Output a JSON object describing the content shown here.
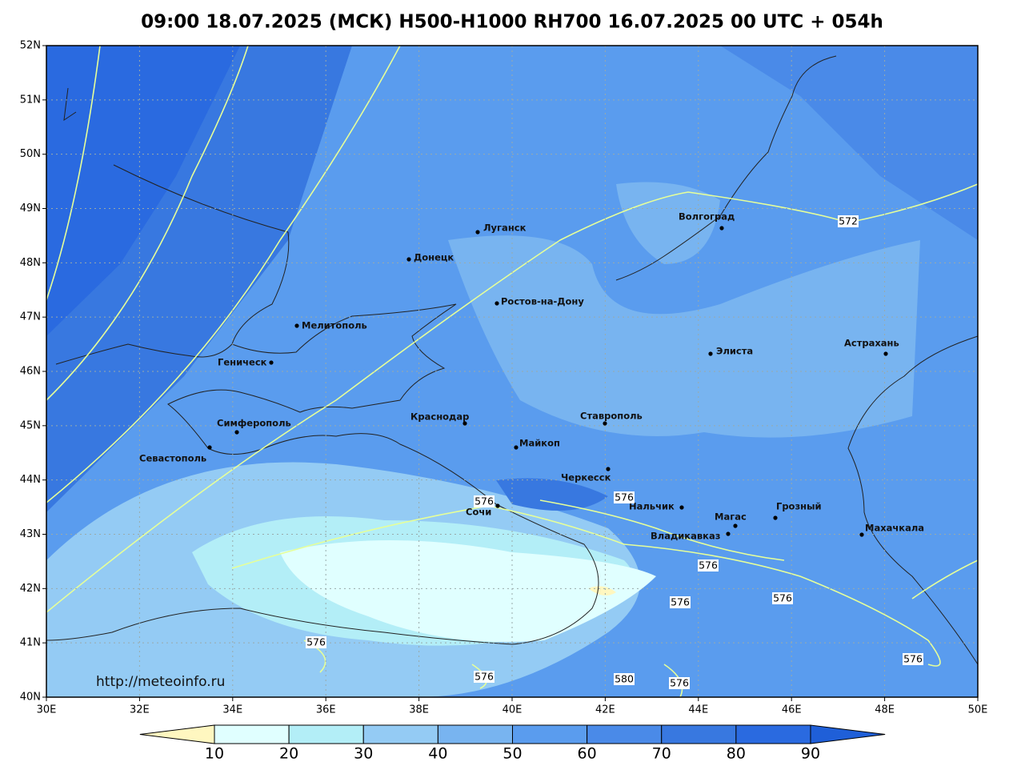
{
  "title": "09:00 18.07.2025 (МСК) H500-H1000 RH700 16.07.2025 00 UTC + 054h",
  "url": "http://meteoinfo.ru",
  "xticks": [
    "30E",
    "32E",
    "34E",
    "36E",
    "38E",
    "40E",
    "42E",
    "44E",
    "46E",
    "48E",
    "50E"
  ],
  "yticks": [
    "52N",
    "51N",
    "50N",
    "49N",
    "48N",
    "47N",
    "46N",
    "45N",
    "44N",
    "43N",
    "42N",
    "41N",
    "40N"
  ],
  "cities": [
    "Луганск",
    "Донецк",
    "Ростов-на-Дону",
    "Волгоград",
    "Мелитополь",
    "Геническ",
    "Элиста",
    "Астрахань",
    "Симферополь",
    "Севастополь",
    "Краснодар",
    "Ставрополь",
    "Майкоп",
    "Черкесск",
    "Сочи",
    "Нальчик",
    "Магас",
    "Грозный",
    "Владикавказ",
    "Махачкала"
  ],
  "contour_labels": [
    "572",
    "576",
    "576",
    "576",
    "576",
    "576",
    "576",
    "576",
    "576",
    "576",
    "580"
  ],
  "colorbar": {
    "ticks": [
      10,
      20,
      30,
      40,
      50,
      60,
      70,
      80,
      90
    ],
    "colors": [
      "#fff7c0",
      "#e0ffff",
      "#b3eef7",
      "#94cbf4",
      "#78b4f0",
      "#5a9cee",
      "#4a8ae8",
      "#3878e0",
      "#2a6ae0",
      "#1f5fd8"
    ]
  }
}
